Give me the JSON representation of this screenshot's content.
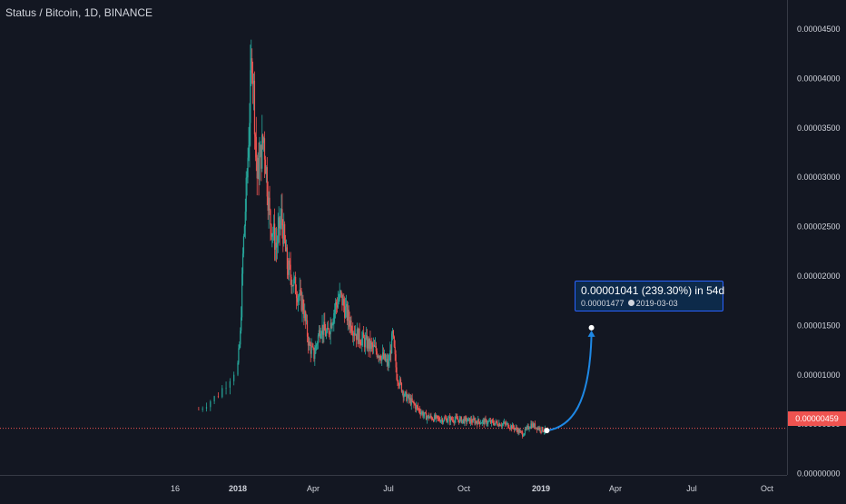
{
  "header": {
    "title": "Status / Bitcoin, 1D, BINANCE"
  },
  "colors": {
    "up": "#26a69a",
    "down": "#ef5350",
    "projection": "#1e88e5",
    "last_price": "#ef5350"
  },
  "tooltip": {
    "change": "0.00001041 (239.30%) in 54d",
    "target": "0.00001477",
    "date": "2019-03-03"
  },
  "last_price_label": "0.00000459",
  "chart_data": {
    "type": "line",
    "title": "Status / Bitcoin, 1D, BINANCE",
    "x_tick_labels": [
      "16",
      "2018",
      "Apr",
      "Jul",
      "Oct",
      "2019",
      "Apr",
      "Jul",
      "Oct"
    ],
    "y_tick_labels": [
      "0.00004500",
      "0.00004000",
      "0.00003500",
      "0.00003000",
      "0.00002500",
      "0.00002000",
      "0.00001500",
      "0.00001000",
      "0.00000500",
      "0.00000000"
    ],
    "ylim": [
      0,
      4.7e-05
    ],
    "grid": false,
    "series": [
      {
        "x": [
          "2017-12-22",
          "2017-12-27",
          "2018-01-01",
          "2018-01-04",
          "2018-01-07",
          "2018-01-12",
          "2018-01-18",
          "2018-01-24",
          "2018-02-01",
          "2018-02-08",
          "2018-02-16",
          "2018-02-22",
          "2018-03-01",
          "2018-03-10",
          "2018-03-20",
          "2018-03-27",
          "2018-04-02",
          "2018-04-10",
          "2018-04-18",
          "2018-04-28",
          "2018-05-04",
          "2018-05-12",
          "2018-05-24",
          "2018-06-08",
          "2018-06-22",
          "2018-07-01",
          "2018-07-06",
          "2018-07-11",
          "2018-07-20",
          "2018-08-01",
          "2018-08-15",
          "2018-09-01",
          "2018-09-20",
          "2018-10-01",
          "2018-10-15",
          "2018-11-01",
          "2018-11-20",
          "2018-12-01",
          "2018-12-10",
          "2018-12-20",
          "2019-01-01",
          "2019-01-09"
        ],
        "values": [
          6.5e-06,
          8e-06,
          1.1e-05,
          1.4e-05,
          2.2e-05,
          3e-05,
          4.3e-05,
          3e-05,
          3.4e-05,
          2.6e-05,
          2.3e-05,
          2.6e-05,
          2.1e-05,
          1.9e-05,
          1.7e-05,
          1.3e-05,
          1.2e-05,
          1.5e-05,
          1.4e-05,
          1.7e-05,
          1.8e-05,
          1.6e-05,
          1.4e-05,
          1.3e-05,
          1.2e-05,
          1.1e-05,
          1.4e-05,
          1e-05,
          8e-06,
          7e-06,
          5.8e-06,
          5.5e-06,
          5.5e-06,
          5.4e-06,
          5.3e-06,
          5.2e-06,
          5e-06,
          4.6e-06,
          4e-06,
          5e-06,
          4.5e-06,
          4.3e-06
        ]
      }
    ],
    "projection": {
      "from": 4.36e-06,
      "to": 1.477e-05,
      "change_pct": 239.3,
      "days": 54,
      "target_date": "2019-03-03"
    },
    "last_price": 4.59e-06
  }
}
